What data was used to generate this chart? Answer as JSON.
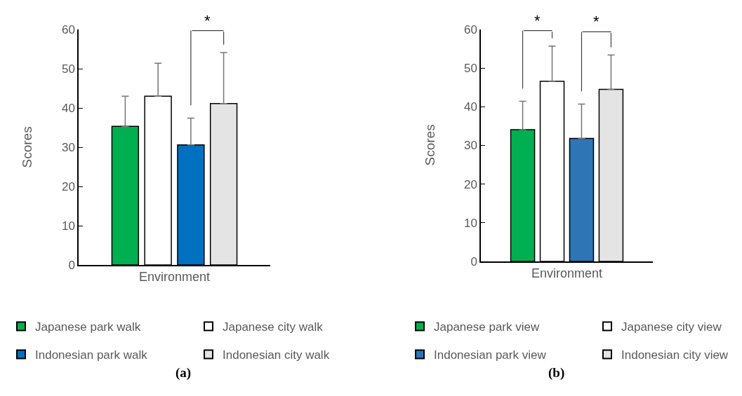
{
  "chart_data": [
    {
      "type": "bar",
      "categories": [
        null,
        null,
        null,
        null
      ],
      "xlabel": "Environment",
      "ylabel": "Scores",
      "ylim": [
        0,
        60
      ],
      "yticks": [
        0,
        10,
        20,
        30,
        40,
        50,
        60
      ],
      "legend": "bottom",
      "stacked": true,
      "series": [
        {
          "name": "Japanese park walk",
          "color": "#00b050",
          "values": [
            35.3,
            null,
            null,
            null
          ],
          "errors": [
            [
              35.3,
              43.0
            ],
            null,
            null,
            null
          ]
        },
        {
          "name": "Japanese city walk",
          "color": "#ffffff",
          "values": [
            null,
            43.0,
            null,
            null
          ],
          "errors": [
            null,
            [
              43.0,
              51.4
            ],
            null,
            null
          ]
        },
        {
          "name": "Indonesian park walk",
          "color": "#0070c0",
          "values": [
            null,
            null,
            30.6,
            null
          ],
          "errors": [
            null,
            null,
            [
              30.6,
              37.4
            ],
            null
          ]
        },
        {
          "name": "Indonesian city walk",
          "color": "#e4e4e4",
          "values": [
            null,
            null,
            null,
            41.1
          ],
          "errors": [
            null,
            null,
            null,
            [
              41.1,
              54.1
            ]
          ]
        }
      ],
      "annotations": [
        "*",
        "(a)"
      ]
    },
    {
      "type": "bar",
      "categories": [
        null,
        null,
        null,
        null
      ],
      "xlabel": "Environment",
      "ylabel": "Scores",
      "ylim": [
        0,
        60
      ],
      "yticks": [
        0,
        10,
        20,
        30,
        40,
        50,
        60
      ],
      "legend": "bottom",
      "stacked": true,
      "series": [
        {
          "name": "Japanese park view",
          "color": "#00b050",
          "values": [
            34.1,
            null,
            null,
            null
          ],
          "errors": [
            [
              34.1,
              41.4
            ],
            null,
            null,
            null
          ]
        },
        {
          "name": "Japanese city view",
          "color": "#ffffff",
          "values": [
            null,
            46.6,
            null,
            null
          ],
          "errors": [
            null,
            [
              46.6,
              55.7
            ],
            null,
            null
          ]
        },
        {
          "name": "Indonesian park view",
          "color": "#2e75b6",
          "values": [
            null,
            null,
            31.8,
            null
          ],
          "errors": [
            null,
            null,
            [
              31.8,
              40.7
            ],
            null
          ]
        },
        {
          "name": "Indonesian city view",
          "color": "#e4e4e4",
          "values": [
            null,
            null,
            null,
            44.5
          ],
          "errors": [
            null,
            null,
            null,
            [
              44.5,
              53.4
            ]
          ]
        }
      ],
      "annotations": [
        "*",
        "*",
        "(b)"
      ]
    }
  ]
}
